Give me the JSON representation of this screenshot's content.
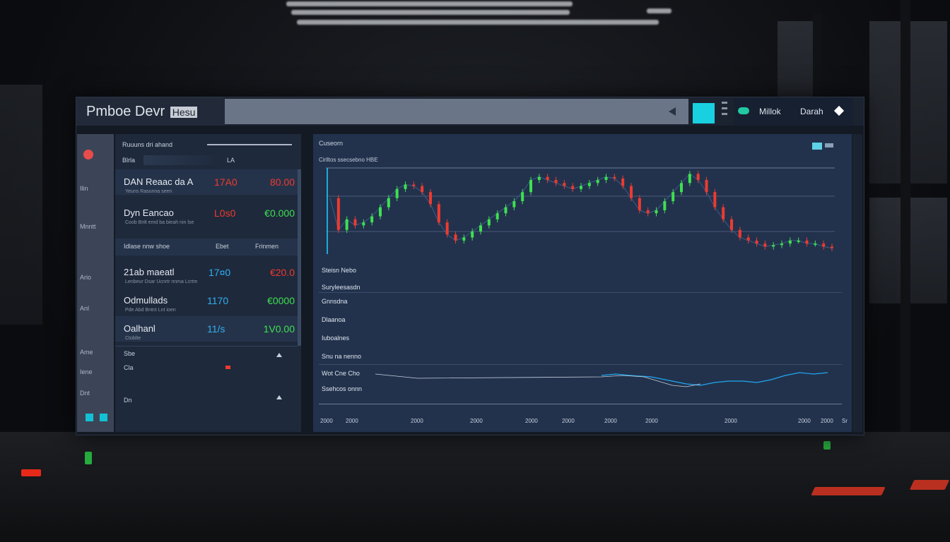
{
  "app": {
    "title_main": "Pmboe Devr",
    "title_badge": "Hesu"
  },
  "toolbar": {
    "label_1": "Millok",
    "label_2": "Darah"
  },
  "sidebar": {
    "items": [
      "Ilin",
      "Mnntt",
      "Ario",
      "Anl",
      "Ame",
      "Iene",
      "Dnt"
    ]
  },
  "list": {
    "header_label": "Ruuuns dri ahand",
    "header_sub": "Blrla",
    "header_count": "LA",
    "rows": [
      {
        "name": "DAN Reaac da A",
        "value1": "17A0",
        "value2": "80.00",
        "sub": "Yeuns Rasunna seen"
      },
      {
        "name": "Dyn Eancao",
        "value1": "L0s0",
        "value2": "€0.000",
        "sub": "Coob Bnlt emd ba bieah nin lse"
      },
      {
        "name": "Idlase nnw shoe",
        "value1": "Ebet",
        "value2": "Frinmen",
        "sub": ""
      },
      {
        "name": "21ab maeatl",
        "value1": "17¤0",
        "value2": "€20.0",
        "sub": "Lenbeur Dsar Ucnrtr nnma Lcrtm"
      },
      {
        "name": "Odmullads",
        "value1": "1170",
        "value2": "€0000",
        "sub": "Pde Abd Bntnt Lnt ioen"
      },
      {
        "name": "Oalhanl",
        "value1": "11/s",
        "value2": "1V0.00",
        "sub": "Ctoblte"
      }
    ],
    "footer_items": [
      "Sbe",
      "Cla",
      "Dn"
    ]
  },
  "chart_panel": {
    "title": "Cuseorn",
    "subtitle": "Cirlltos ssecsebno HBE",
    "metrics": [
      "Steisn Nebo",
      "Suryleesasdn",
      "Gnnsdna",
      "Dlaanoa",
      "Iuboalnes",
      "Snu na nenno",
      "Wot Cne Cho",
      "Ssehcos onnn"
    ],
    "x_ticks": [
      "2000",
      "2000",
      "2000",
      "2000",
      "2000",
      "2000",
      "2000",
      "2000",
      "2000",
      "2000",
      "2000"
    ],
    "corner_label": "Sr"
  },
  "colors": {
    "up": "#3ee04f",
    "down": "#ef3a2e",
    "accent": "#19d0e0",
    "panel": "#22324d"
  },
  "chart_data": {
    "type": "line",
    "series": [
      {
        "values": [
          66,
          45,
          52,
          48,
          50,
          54,
          60,
          66,
          72,
          75,
          74,
          70,
          62,
          50,
          42,
          38,
          40,
          44,
          48,
          52,
          56,
          60,
          64,
          70,
          78,
          80,
          78,
          76,
          74,
          72,
          74,
          76,
          78,
          80,
          79,
          74,
          66,
          58,
          56,
          58,
          64,
          70,
          76,
          82,
          78,
          70,
          60,
          52,
          45,
          40,
          38,
          36,
          34,
          35,
          36,
          38,
          38,
          36,
          36,
          34,
          33
        ]
      }
    ]
  }
}
